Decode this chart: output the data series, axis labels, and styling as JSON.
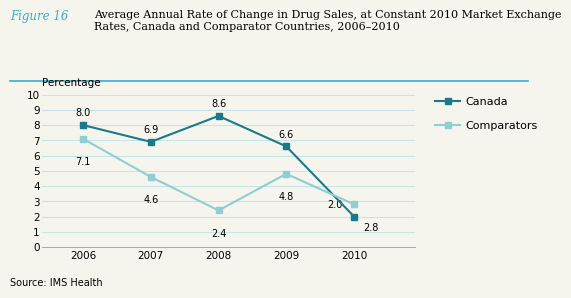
{
  "title_prefix": "Figure 16",
  "title_text": "Average Annual Rate of Change in Drug Sales, at Constant 2010 Market Exchange\nRates, Canada and Comparator Countries, 2006–2010",
  "percentage_label": "Percentage",
  "years": [
    2006,
    2007,
    2008,
    2009,
    2010
  ],
  "canada": [
    8.0,
    6.9,
    8.6,
    6.6,
    2.0
  ],
  "comparators": [
    7.1,
    4.6,
    2.4,
    4.8,
    2.8
  ],
  "canada_labels": [
    "8.0",
    "6.9",
    "8.6",
    "6.6",
    "2.0"
  ],
  "comparators_labels": [
    "7.1",
    "4.6",
    "2.4",
    "4.8",
    "2.8"
  ],
  "canada_color": "#1a7a8a",
  "comparators_color": "#90cdd4",
  "ylim": [
    0,
    10
  ],
  "yticks": [
    0,
    1,
    2,
    3,
    4,
    5,
    6,
    7,
    8,
    9,
    10
  ],
  "source": "Source: IMS Health",
  "bg_color": "#f5f5ee",
  "fig_title_color": "#3aaccc",
  "grid_color": "#c8e4e8",
  "legend_canada": "Canada",
  "legend_comparators": "Comparators",
  "title_sep_color": "#3aaccc"
}
